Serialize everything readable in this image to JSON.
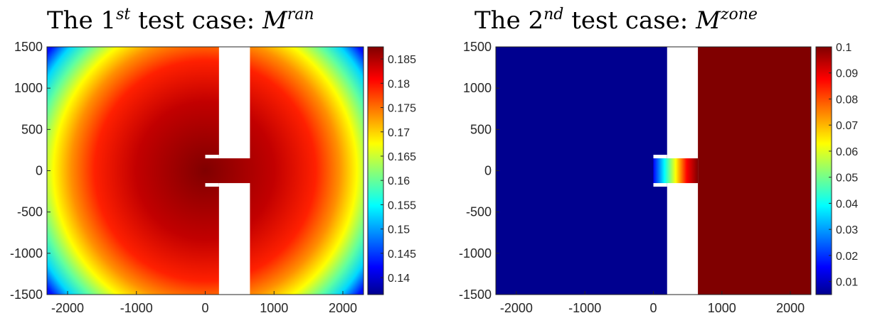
{
  "colors": {
    "jet": [
      "#00008f",
      "#0000ff",
      "#00ffff",
      "#ffff00",
      "#ff0000",
      "#800000"
    ],
    "background": "#ffffff",
    "axis": "#262626"
  },
  "chart_data": [
    {
      "type": "heatmap",
      "title": {
        "prefix": "The 1",
        "sup": "st",
        "middle": " test case: ",
        "var": "M",
        "var_sup": "ran"
      },
      "xlabel": "",
      "ylabel": "",
      "xlim": [
        -2300,
        2300
      ],
      "ylim": [
        -1500,
        1500
      ],
      "xticks": [
        -2000,
        -1000,
        0,
        1000,
        2000
      ],
      "xtick_labels": [
        "-2000",
        "-1000",
        "0",
        "1000",
        "2000"
      ],
      "yticks": [
        1500,
        1000,
        500,
        0,
        -500,
        -1000,
        -1500
      ],
      "ytick_labels": [
        "1500",
        "1000",
        "500",
        "0",
        "-500",
        "-1000",
        "-1500"
      ],
      "colorbar": {
        "range": [
          0.1365,
          0.1875
        ],
        "ticks": [
          0.185,
          0.18,
          0.175,
          0.17,
          0.165,
          0.16,
          0.155,
          0.15,
          0.145,
          0.14
        ],
        "tick_labels": [
          "0.185",
          "0.18",
          "0.175",
          "0.17",
          "0.165",
          "0.16",
          "0.155",
          "0.15",
          "0.145",
          "0.14"
        ]
      },
      "field": {
        "pattern": "radial",
        "center": [
          0,
          0
        ],
        "value_at_center": 0.1875,
        "value_at_far_corner": 0.1365,
        "gap_x_range": [
          200,
          650
        ],
        "channel_y_range": [
          -150,
          150
        ],
        "channel_x_range": [
          0,
          650
        ]
      }
    },
    {
      "type": "heatmap",
      "title": {
        "prefix": "The 2",
        "sup": "nd",
        "middle": " test case: ",
        "var": "M",
        "var_sup": "zone"
      },
      "xlabel": "",
      "ylabel": "",
      "xlim": [
        -2300,
        2300
      ],
      "ylim": [
        -1500,
        1500
      ],
      "xticks": [
        -2000,
        -1000,
        0,
        1000,
        2000
      ],
      "xtick_labels": [
        "-2000",
        "-1000",
        "0",
        "1000",
        "2000"
      ],
      "yticks": [
        1500,
        1000,
        500,
        0,
        -500,
        -1000,
        -1500
      ],
      "ytick_labels": [
        "1500",
        "1000",
        "500",
        "0",
        "-500",
        "-1000",
        "-1500"
      ],
      "colorbar": {
        "range": [
          0.005,
          0.1
        ],
        "ticks": [
          0.1,
          0.09,
          0.08,
          0.07,
          0.06,
          0.05,
          0.04,
          0.03,
          0.02,
          0.01
        ],
        "tick_labels": [
          "0.1",
          "0.09",
          "0.08",
          "0.07",
          "0.06",
          "0.05",
          "0.04",
          "0.03",
          "0.02",
          "0.01"
        ]
      },
      "field": {
        "pattern": "zones",
        "left_value": 0.005,
        "right_value": 0.1,
        "channel_gradient": [
          0.005,
          0.1
        ],
        "gap_x_range": [
          200,
          650
        ],
        "channel_y_range": [
          -150,
          150
        ],
        "channel_x_range": [
          0,
          650
        ]
      }
    }
  ]
}
